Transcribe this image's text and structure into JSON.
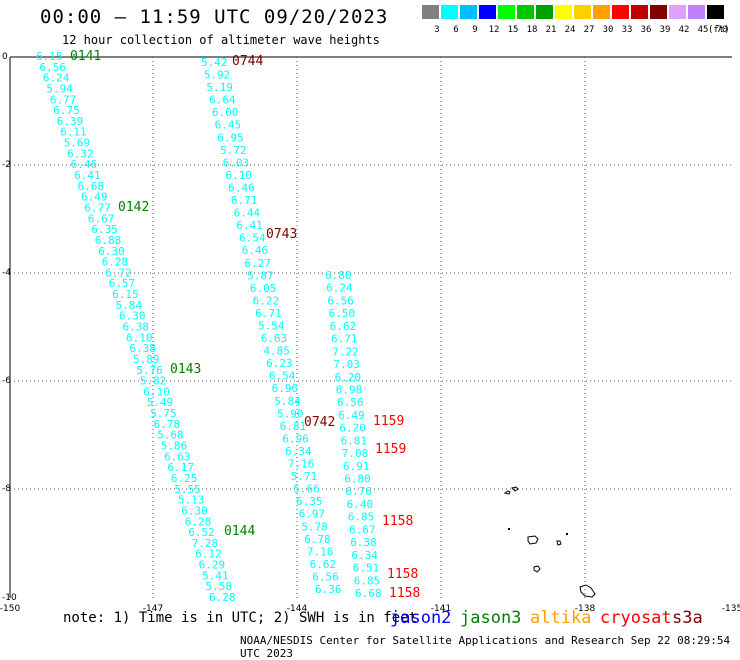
{
  "header": {
    "title": "00:00 – 11:59 UTC 09/20/2023",
    "subtitle": "12 hour collection of altimeter wave heights"
  },
  "color_scale": {
    "colors": [
      "#808080",
      "#00ffff",
      "#00bfff",
      "#0000ff",
      "#00ff00",
      "#00c800",
      "#00a000",
      "#ffff00",
      "#ffd000",
      "#ffa000",
      "#ff0000",
      "#c00000",
      "#800000",
      "#e0a0ff",
      "#c080ff",
      "#000000"
    ],
    "labels": [
      "3",
      "6",
      "9",
      "12",
      "15",
      "18",
      "21",
      "24",
      "27",
      "30",
      "33",
      "36",
      "39",
      "42",
      "45",
      "70"
    ],
    "unit": "(ft)"
  },
  "axes": {
    "x_ticks": [
      "-150",
      "-147",
      "-144",
      "-141",
      "-138",
      "-135"
    ],
    "y_ticks": [
      "0",
      "-2",
      "-4",
      "-6",
      "-8",
      "-10"
    ]
  },
  "tracks": [
    {
      "color": "#00ffff",
      "values": [
        "6.15",
        "6.56",
        "6.24",
        "5.94",
        "6.77",
        "6.75",
        "6.39",
        "6.11",
        "5.69",
        "6.32",
        "6.46",
        "6.41",
        "6.68",
        "6.49",
        "6.77",
        "6.67",
        "6.35",
        "6.88",
        "6.30",
        "6.28",
        "6.72",
        "6.57",
        "6.15",
        "5.84",
        "6.30",
        "6.38",
        "6.10",
        "6.38",
        "5.89",
        "5.76",
        "5.82",
        "6.10",
        "5.49",
        "5.75",
        "6.78",
        "5.68",
        "5.86",
        "6.63",
        "6.17",
        "6.25",
        "5.55",
        "5.13",
        "6.30",
        "6.28",
        "6.52",
        "7.28",
        "6.12",
        "6.29",
        "5.41",
        "5.58",
        "6.28"
      ]
    },
    {
      "color": "#00ffff",
      "values": [
        "5.42",
        "5.92",
        "5.19",
        "6.64",
        "6.00",
        "6.45",
        "6.95",
        "5.72",
        "6.03",
        "6.10",
        "6.46",
        "6.71",
        "6.44",
        "6.41",
        "6.54",
        "6.46",
        "6.27",
        "5.87",
        "6.05",
        "6.22",
        "6.71",
        "5.54",
        "6.63",
        "4.85",
        "6.23",
        "6.54",
        "6.96",
        "5.84",
        "5.90",
        "6.81",
        "6.96",
        "6.34",
        "7.16",
        "5.71",
        "5.66",
        "6.35",
        "6.97",
        "5.78",
        "6.78",
        "7.16",
        "6.62",
        "6.56",
        "6.36"
      ]
    },
    {
      "color": "#00ffff",
      "values": [
        "6.80",
        "6.24",
        "6.56",
        "6.50",
        "6.62",
        "6.71",
        "7.22",
        "7.03",
        "6.20",
        "6.98",
        "6.56",
        "6.49",
        "6.20",
        "6.81",
        "7.08",
        "6.91",
        "6.80",
        "6.76",
        "6.40",
        "6.85",
        "6.67",
        "6.38",
        "6.34",
        "6.51",
        "6.85",
        "6.68"
      ]
    }
  ],
  "pass_labels": [
    {
      "text": "0141",
      "color": "#008000"
    },
    {
      "text": "0142",
      "color": "#008000"
    },
    {
      "text": "0143",
      "color": "#008000"
    },
    {
      "text": "0144",
      "color": "#008000"
    },
    {
      "text": "0744",
      "color": "#800000"
    },
    {
      "text": "0743",
      "color": "#800000"
    },
    {
      "text": "0742",
      "color": "#800000"
    },
    {
      "text": "1159",
      "color": "#ff0000"
    },
    {
      "text": "1159",
      "color": "#ff0000"
    },
    {
      "text": "1158",
      "color": "#ff0000"
    },
    {
      "text": "1158",
      "color": "#ff0000"
    },
    {
      "text": "1158",
      "color": "#ff0000"
    }
  ],
  "footer": {
    "note": "note: 1) Time is in UTC; 2) SWH is in feet",
    "satellites": [
      {
        "name": "jason2",
        "color": "#0000ff"
      },
      {
        "name": "jason3",
        "color": "#008000"
      },
      {
        "name": "altika",
        "color": "#ffa000"
      },
      {
        "name": "cryosat",
        "color": "#ff0000"
      },
      {
        "name": "s3a",
        "color": "#800000"
      }
    ],
    "credit": "NOAA/NESDIS Center for Satellite Applications and Research    Sep 22 08:29:54 UTC 2023"
  }
}
